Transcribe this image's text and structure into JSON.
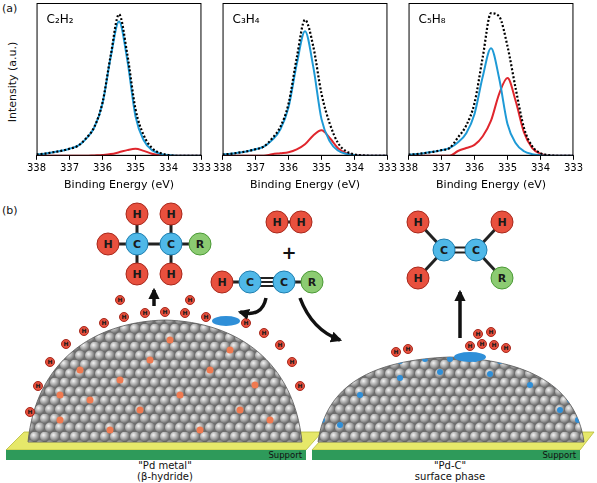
{
  "figure": {
    "label": "(a)",
    "y_label": "Intensity (a.u.)"
  },
  "chart_data": [
    {
      "type": "line",
      "annotation": "C₂H₂",
      "x_label": "Binding Energy (eV)",
      "x": [
        338,
        337.75,
        337.5,
        337.25,
        337,
        336.75,
        336.5,
        336.25,
        336,
        335.75,
        335.5,
        335.25,
        335,
        334.75,
        334.5,
        334.25,
        334,
        333.75,
        333.5,
        333.25,
        333
      ],
      "xlim": [
        338,
        333
      ],
      "xticks": [
        338,
        337,
        336,
        335,
        334,
        333
      ],
      "ylim": [
        0,
        1.08
      ],
      "tick_labels": "x",
      "grid": false,
      "series": [
        {
          "color": "#000000",
          "line_style": "dotted",
          "values": [
            0.01,
            0.015,
            0.025,
            0.035,
            0.05,
            0.07,
            0.123,
            0.203,
            0.376,
            0.712,
            1.0,
            0.72,
            0.33,
            0.145,
            0.055,
            0.02,
            0.005,
            0,
            0,
            0,
            0
          ]
        },
        {
          "color": "#1e9ad6",
          "line_style": "solid",
          "values": [
            0.01,
            0.015,
            0.025,
            0.035,
            0.05,
            0.07,
            0.12,
            0.2,
            0.37,
            0.7,
            0.95,
            0.68,
            0.28,
            0.11,
            0.04,
            0.015,
            0.005,
            0,
            0,
            0,
            0
          ]
        },
        {
          "color": "#e0262d",
          "line_style": "solid",
          "values": [
            0,
            0,
            0,
            0,
            0,
            0,
            0,
            0.003,
            0.006,
            0.012,
            0.025,
            0.04,
            0.05,
            0.035,
            0.015,
            0.005,
            0,
            0,
            0,
            0,
            0
          ]
        }
      ]
    },
    {
      "type": "line",
      "annotation": "C₃H₄",
      "x_label": "Binding Energy (eV)",
      "x": [
        338,
        337.75,
        337.5,
        337.25,
        337,
        336.75,
        336.5,
        336.25,
        336,
        335.75,
        335.5,
        335.25,
        335,
        334.75,
        334.5,
        334.25,
        334,
        333.75,
        333.5,
        333.25,
        333
      ],
      "xlim": [
        338,
        333
      ],
      "xticks": [
        338,
        337,
        336,
        335,
        334,
        333
      ],
      "ylim": [
        0,
        1.08
      ],
      "tick_labels": "x",
      "grid": false,
      "series": [
        {
          "color": "#000000",
          "line_style": "dotted",
          "values": [
            0.009,
            0.014,
            0.023,
            0.032,
            0.046,
            0.065,
            0.122,
            0.203,
            0.368,
            0.693,
            0.961,
            0.774,
            0.439,
            0.228,
            0.091,
            0.032,
            0.01,
            0.003,
            0,
            0,
            0
          ]
        },
        {
          "color": "#1e9ad6",
          "line_style": "solid",
          "values": [
            0.009,
            0.014,
            0.023,
            0.032,
            0.046,
            0.065,
            0.111,
            0.185,
            0.343,
            0.648,
            0.88,
            0.63,
            0.259,
            0.102,
            0.037,
            0.014,
            0.005,
            0,
            0,
            0,
            0
          ]
        },
        {
          "color": "#e0262d",
          "line_style": "solid",
          "values": [
            0,
            0,
            0,
            0,
            0,
            0,
            0.011,
            0.018,
            0.025,
            0.045,
            0.081,
            0.144,
            0.18,
            0.126,
            0.054,
            0.018,
            0.005,
            0,
            0,
            0,
            0
          ]
        }
      ]
    },
    {
      "type": "line",
      "annotation": "C₅H₈",
      "x_label": "Binding Energy (eV)",
      "x": [
        338,
        337.75,
        337.5,
        337.25,
        337,
        336.75,
        336.5,
        336.25,
        336,
        335.75,
        335.5,
        335.25,
        335,
        334.75,
        334.5,
        334.25,
        334,
        333.75,
        333.5,
        333.25,
        333
      ],
      "xlim": [
        338,
        333
      ],
      "xticks": [
        338,
        337,
        336,
        335,
        334,
        333
      ],
      "ylim": [
        0,
        1.08
      ],
      "tick_labels": "x",
      "grid": false,
      "series": [
        {
          "color": "#000000",
          "line_style": "dotted",
          "values": [
            0.008,
            0.012,
            0.02,
            0.028,
            0.04,
            0.056,
            0.13,
            0.215,
            0.373,
            0.698,
            1.008,
            0.984,
            0.774,
            0.473,
            0.197,
            0.067,
            0.019,
            0.005,
            0,
            0,
            0
          ]
        },
        {
          "color": "#1e9ad6",
          "line_style": "solid",
          "values": [
            0.008,
            0.012,
            0.02,
            0.028,
            0.04,
            0.056,
            0.096,
            0.16,
            0.296,
            0.56,
            0.76,
            0.544,
            0.224,
            0.088,
            0.032,
            0.012,
            0.004,
            0,
            0,
            0,
            0
          ]
        },
        {
          "color": "#e0262d",
          "line_style": "solid",
          "values": [
            0,
            0,
            0,
            0,
            0,
            0,
            0.034,
            0.055,
            0.077,
            0.138,
            0.248,
            0.44,
            0.55,
            0.385,
            0.165,
            0.055,
            0.015,
            0,
            0,
            0,
            0
          ]
        }
      ]
    }
  ],
  "diagram": {
    "label": "(b)",
    "reactants": {
      "hydrogen": [
        "H",
        "H"
      ],
      "plus": "+",
      "alkyne": [
        "H",
        "C",
        "C",
        "R"
      ]
    },
    "products": {
      "alkane": [
        "H",
        "H",
        "H",
        "C",
        "C",
        "R",
        "H",
        "H"
      ],
      "alkene": [
        "H",
        "H",
        "C",
        "C",
        "H",
        "R"
      ]
    },
    "left_particle": {
      "name": "\"Pd metal\"",
      "subname": "(β-hydride)",
      "support": "Support",
      "surface_atoms": [
        "H",
        "H",
        "H",
        "H",
        "H",
        "H",
        "H",
        "H",
        "H",
        "H",
        "H",
        "H",
        "H",
        "H",
        "H",
        "H",
        "H",
        "H"
      ]
    },
    "right_particle": {
      "name": "\"Pd-C\"",
      "subname": "surface phase",
      "support": "Support",
      "surface_atoms": [
        "H",
        "H",
        "H",
        "H",
        "H",
        "H",
        "H",
        "H"
      ]
    }
  }
}
